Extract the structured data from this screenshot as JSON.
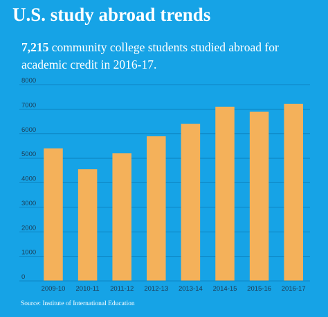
{
  "header": {
    "title": "U.S. study abroad trends",
    "highlight": "7,215",
    "subtitle_rest": " community college students studied abroad for academic credit in 2016-17."
  },
  "source": "Source: Institute of International Education",
  "colors": {
    "background": "#16a3e6",
    "bar": "#f4b15a",
    "grid": "#0d86c4",
    "text": "#ffffff",
    "axis_label": "#1d3a52"
  },
  "chart_data": {
    "type": "bar",
    "title": "",
    "xlabel": "",
    "ylabel": "",
    "categories": [
      "2009-10",
      "2010-11",
      "2011-12",
      "2012-13",
      "2013-14",
      "2014-15",
      "2015-16",
      "2016-17"
    ],
    "values": [
      5400,
      4550,
      5200,
      5900,
      6400,
      7100,
      6900,
      7215
    ],
    "ylim": [
      0,
      8000
    ],
    "yticks": [
      0,
      1000,
      2000,
      3000,
      4000,
      5000,
      6000,
      7000,
      8000
    ],
    "grid": true,
    "legend": "none"
  }
}
